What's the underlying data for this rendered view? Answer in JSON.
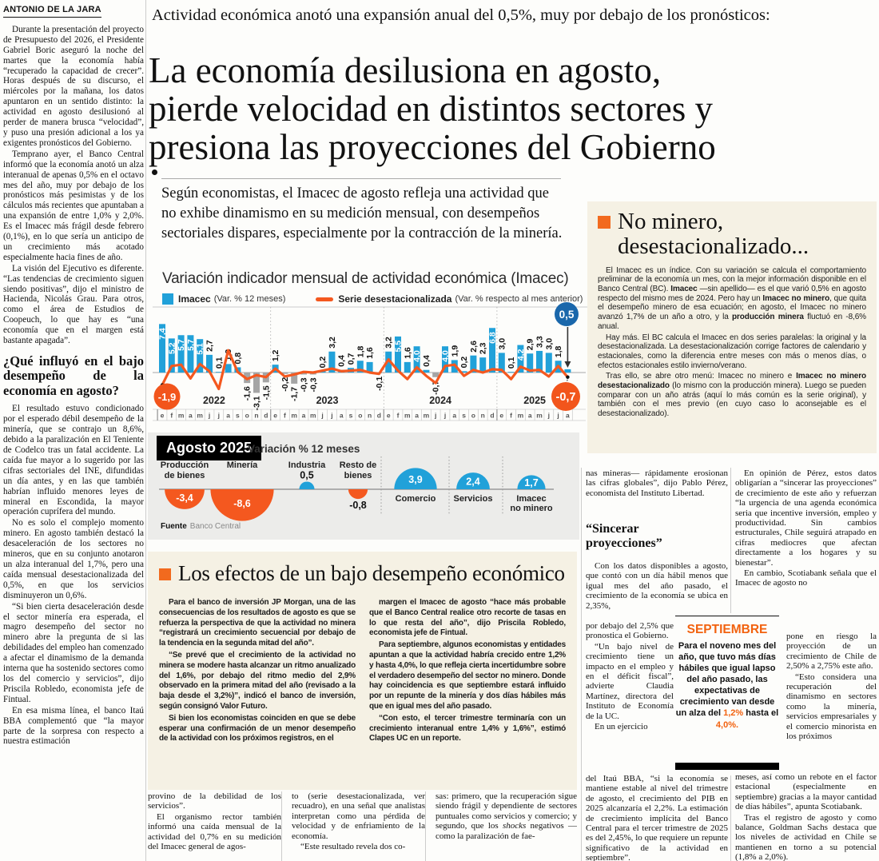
{
  "byline": "ANTONIO DE LA JARA",
  "kicker": "Actividad económica anotó una expansión anual del 0,5%, muy por debajo de los pronósticos:",
  "headline": {
    "lines": [
      "La economía desilusiona en agosto,",
      "pierde velocidad en distintos sectores y",
      "presiona las proyecciones del Gobierno"
    ]
  },
  "deck": "Según economistas, el Imacec de agosto refleja una actividad que no exhibe dinamismo en su medición mensual, con desempeños sectoriales dispares, especialmente por la contracción de la minería.",
  "left_column": {
    "paragraphs": [
      "Durante la presentación del proyecto de Presupuesto del 2026, el Presidente Gabriel Boric aseguró la noche del martes que la economía había “recuperado la capacidad de crecer”. Horas después de su discurso, el miércoles por la mañana, los datos apuntaron en un sentido distinto: la actividad en agosto desilusionó al perder de manera brusca “velocidad”, y puso una presión adicional a los ya exigentes pronósticos del Gobierno.",
      "Temprano ayer, el Banco Central informó que la economía anotó un alza interanual de apenas 0,5% en el octavo mes del año, muy por debajo de los pronósticos más pesimistas y de los cálculos más recientes que apuntaban a una expansión de entre 1,0% y 2,0%. Es el Imacec más frágil desde febrero (0,1%), en lo que sería un anticipo de un crecimiento más acotado especialmente hacia fines de año.",
      "La visión del Ejecutivo es diferente. “Las tendencias de crecimiento siguen siendo positivas”, dijo el ministro de Hacienda, Nicolás Grau. Para otros, como el área de Estudios de Coopeuch, lo que hay es “una economía que en el margen está bastante apagada”."
    ],
    "subhead": "¿Qué influyó en el bajo desempeño de la economía en agosto?",
    "paragraphs2": [
      "El resultado estuvo condicionado por el esperado débil desempeño de la minería, que se contrajo un 8,6%, debido a la paralización en El Teniente de Codelco tras un fatal accidente. La caída fue mayor a lo sugerido por las cifras sectoriales del INE, difundidas un día antes, y en las que también habrían influido menores leyes de mineral en Escondida, la mayor operación cuprífera del mundo.",
      "No es solo el complejo momento minero. En agosto también destacó la desaceleración de los sectores no mineros, que en su conjunto anotaron un alza interanual del 1,7%, pero una caída mensual desestacionalizada del 0,5%, en que los servicios disminuyeron un 0,6%.",
      "“Si bien cierta desaceleración desde el sector minería era esperada, el magro desempeño del sector no minero abre la pregunta de si las debilidades del empleo han comenzado a afectar el dinamismo de la demanda interna que ha sostenido sectores como los del comercio y servicios”, dijo Priscila Robledo, economista jefe de Fintual.",
      "En esa misma línea, el banco Itaú BBA complementó que “la mayor parte de la sorpresa con respecto a nuestra estimación"
    ]
  },
  "chart_data": [
    {
      "type": "bar+line",
      "title": "Variación indicador mensual de actividad económica (Imacec)",
      "legend": [
        {
          "label": "Imacec",
          "note": "(Var. % 12 meses)",
          "marker": "square",
          "color": "#21a1d9"
        },
        {
          "label": "Serie desestacionalizada",
          "note": "(Var. % respecto al mes anterior)",
          "marker": "line",
          "color": "#f4581f"
        }
      ],
      "month_letters": [
        "e",
        "f",
        "m",
        "a",
        "m",
        "j",
        "j",
        "a",
        "s",
        "o",
        "n",
        "d"
      ],
      "years": [
        {
          "label": "2022",
          "months": 12
        },
        {
          "label": "2023",
          "months": 12
        },
        {
          "label": "2024",
          "months": 12
        },
        {
          "label": "2025",
          "months": 8
        }
      ],
      "bar_series_name": "Imacec (Var. % 12 meses)",
      "bar_values": [
        7.4,
        5.2,
        5.7,
        5.7,
        5.1,
        2.7,
        0.1,
        1.3,
        0.8,
        -1.6,
        -3.1,
        -1.5,
        1.2,
        -0.2,
        -1.7,
        -0.3,
        -0.3,
        0.2,
        3.2,
        0.4,
        0.7,
        1.8,
        1.6,
        -0.1,
        3.2,
        5.5,
        1.6,
        4.0,
        0.4,
        -0.7,
        4.0,
        1.9,
        0.2,
        2.6,
        2.3,
        6.8,
        3.0,
        0.1,
        4.2,
        2.9,
        3.3,
        3.0,
        1.8,
        0.5
      ],
      "line_series_name": "Serie desestacionalizada (Var. % respecto al mes anterior)",
      "line_values_approx": [
        -1.9,
        1.0,
        1.2,
        -0.9,
        1.3,
        0.2,
        -2.5,
        3.4,
        0.1,
        -1.0,
        -0.4,
        -0.7,
        0.6,
        -0.6,
        -0.3,
        0.1,
        0.0,
        0.3,
        0.6,
        0.2,
        0.3,
        0.4,
        0.0,
        -0.2,
        2.0,
        0.3,
        -1.0,
        0.8,
        -0.5,
        -1.6,
        1.0,
        1.2,
        -0.5,
        0.4,
        0.0,
        0.5,
        0.4,
        -1.0,
        0.9,
        0.3,
        0.4,
        -0.6,
        1.0,
        -0.7
      ],
      "callouts": {
        "line_start": "-1,9",
        "bar_end": "0,5",
        "line_end": "-0,7"
      },
      "bar_color": "#21a1d9",
      "bar_negative_color": "#a5a5a5",
      "line_color": "#f4581f",
      "highlight_blue": "#1a67ab",
      "highlight_orange": "#f2551c"
    },
    {
      "type": "bubble",
      "title": "Agosto 2025",
      "subtitle": "Variación % 12 meses",
      "source_label": "Fuente",
      "source": "Banco Central",
      "positive_color": "#21a1d9",
      "negative_color": "#f4581f",
      "items": [
        {
          "label": [
            "Producción",
            "de bienes"
          ],
          "value": -3.4
        },
        {
          "label": [
            "Minería"
          ],
          "value": -8.6
        },
        {
          "label": [
            "Industria"
          ],
          "value": 0.5
        },
        {
          "label": [
            "Resto de",
            "bienes"
          ],
          "value": -0.8
        },
        {
          "label": [
            "Comercio"
          ],
          "value": 3.9
        },
        {
          "label": [
            "Servicios"
          ],
          "value": 2.4
        },
        {
          "label": [
            "Imacec",
            "no minero"
          ],
          "value": 1.7
        }
      ]
    }
  ],
  "sidebar": {
    "heading": "No minero,\ndesestacionalizado...",
    "paragraphs": [
      [
        "El Imacec es un índice. Con su variación se calcula el comportamiento preliminar de la economía un mes, con la mejor información disponible en el Banco Central (BC). ",
        {
          "t": "Imacec",
          "b": true
        },
        " —sin apellido— es el que varió 0,5% en agosto respecto del mismo mes de 2024. Pero hay un ",
        {
          "t": "Imacec no minero",
          "b": true
        },
        ", que quita el desempeño minero de esa ecuación; en agosto, el Imacec no minero avanzó 1,7% de un año a otro, y la ",
        {
          "t": "producción minera",
          "b": true
        },
        " fluctuó en -8,6% anual."
      ],
      [
        "Hay más. El BC calcula el Imacec en dos series paralelas: la original y la desestacionalizada. La desestacionalización corrige factores de calendario y estacionales, como la diferencia entre meses con más o menos días, o efectos estacionales estilo invierno/verano."
      ],
      [
        "Tras ello, se abre otro menú: Imacec no minero e ",
        {
          "t": "Imacec no minero desestacionalizado",
          "b": true
        },
        " (lo mismo con la producción minera). Luego se pueden comparar con un año atrás (aquí lo más común es la serie original), y también con el mes previo (en cuyo caso lo aconsejable es el desestacionalizado)."
      ]
    ]
  },
  "effects_box": {
    "heading": "Los efectos de un bajo desempeño económico",
    "col1": [
      "Para el banco de inversión JP Morgan, una de las consecuencias de los resultados de agosto es que se refuerza la perspectiva de que la actividad no minera “registrará un crecimiento secuencial por debajo de la tendencia en la segunda mitad del año”.",
      "“Se prevé que el crecimiento de la actividad no minera se modere hasta alcanzar un ritmo anualizado del 1,6%, por debajo del ritmo medio del 2,9% observado en la primera mitad del año (revisado a la baja desde el 3,2%)”, indicó el banco de inversión, según consignó Valor Futuro.",
      "Si bien los economistas coinciden en que se debe esperar una confirmación de un menor desempeño de la actividad con los próximos registros, en el"
    ],
    "col2": [
      "margen el Imacec de agosto “hace más probable que el Banco Central realice otro recorte de tasas en lo que resta del año”, dijo Priscila Robledo, economista jefe de Fintual.",
      "Para septiembre, algunos economistas y entidades apuntan a que la actividad habría crecido entre 1,2% y hasta 4,0%, lo que refleja cierta incertidumbre sobre el verdadero desempeño del sector no minero. Donde hay coincidencia es que septiembre estará influido por un repunte de la minería y dos días hábiles más que en igual mes del año pasado.",
      "“Con esto, el tercer trimestre terminaría con un crecimiento interanual entre 1,4% y 1,6%”, estimó Clapes UC en un reporte."
    ]
  },
  "right_columns": {
    "a1": [
      "nas mineras— rápidamente erosionan las cifras globales”, dijo Pablo Pérez, economista del Instituto Libertad."
    ],
    "subhead_a": "“Sincerar\nproyecciones”",
    "a2": [
      "Con los datos disponibles a agosto, que contó con un día hábil menos que igual mes del año pasado, el crecimiento de la economía se ubica en 2,35%,"
    ],
    "a3": [
      "por debajo del 2,5% que pronostica el Gobierno.",
      "“Un bajo nivel de crecimiento tiene un impacto en el empleo y en el déficit fiscal”, advierte Claudia Martínez, directora del Instituto de Economía de la UC.",
      "En un ejercicio"
    ],
    "a4": [
      "del Itaú BBA, “si la economía se mantiene estable al nivel del trimestre de agosto, el crecimiento del PIB en 2025 alcanzaría el 2,2%. La estimación de crecimiento implícita del Banco Central para el tercer trimestre de 2025 es del 2,45%, lo que requiere un repunte significativo de la actividad en septiembre”."
    ],
    "b1": [
      "En opinión de Pérez, estos datos obligarían a “sincerar las proyecciones” de crecimiento de este año y refuerzan “la urgencia de una agenda económica seria que incentive inversión, empleo y productividad. Sin cambios estructurales, Chile seguirá atrapado en cifras mediocres que afectan directamente a los hogares y su bienestar”.",
      "En cambio, Scotiabank señala que el Imacec de agosto no"
    ],
    "b2": [
      "pone en riesgo la proyección de un crecimiento de Chile de 2,50% a 2,75% este año.",
      "“Esto considera una recuperación del dinamismo en sectores como la minería, servicios empresariales y el comercio minorista en los próximos"
    ],
    "b3": [
      "meses, así como un rebote en el factor estacional (especialmente en septiembre) gracias a la mayor cantidad de días hábiles”, apunta Scotiabank.",
      "Tras el registro de agosto y como balance, Goldman Sachs destaca que los niveles de actividad en Chile se mantienen en torno a su potencial (1,8% a 2,0%)."
    ]
  },
  "septiembre_box": {
    "title": "SEPTIEMBRE",
    "body": [
      "Para el noveno mes del año, que tuvo más días hábiles que igual lapso del año pasado, las expectativas de crecimiento van desde un alza del ",
      {
        "t": "1,2%",
        "c": true
      },
      " hasta el ",
      {
        "t": "4,0%.",
        "c": true
      }
    ]
  },
  "bottom_columns": {
    "c1": [
      "provino de la debilidad de los servicios”.",
      "El organismo rector también informó una caída mensual de la actividad del 0,7% en su medición del Imacec general de agos-"
    ],
    "c2": [
      "to (serie desestacionalizada, ver recuadro), en una señal que analistas interpretan como una pérdida de velocidad y de enfriamiento de la economía.",
      "“Este resultado revela dos co-"
    ],
    "c3": [
      [
        "sas: primero, que la recuperación sigue siendo frágil y dependiente de sectores puntuales como servicios y comercio; y segundo, que los ",
        {
          "t": "shocks",
          "i": true
        },
        " negativos —como la paralización de fae-"
      ]
    ]
  },
  "colors": {
    "accent_orange": "#f26a1e",
    "chart_blue": "#21a1d9",
    "chart_orange": "#f4581f",
    "dark_blue": "#1a67ab",
    "cream_box": "#f5f1e4",
    "panel_gray": "#ececea",
    "sept_orange": "#f2620f"
  }
}
